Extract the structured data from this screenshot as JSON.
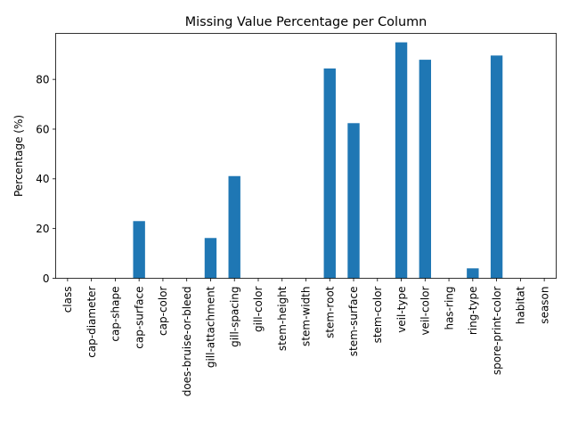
{
  "chart_data": {
    "type": "bar",
    "title": "Missing Value Percentage per Column",
    "xlabel": "",
    "ylabel": "Percentage (%)",
    "ylim": [
      0,
      98.5
    ],
    "yticks": [
      0,
      20,
      40,
      60,
      80
    ],
    "grid": false,
    "legend": "none",
    "bar_color": "#1f77b4",
    "categories": [
      "class",
      "cap-diameter",
      "cap-shape",
      "cap-surface",
      "cap-color",
      "does-bruise-or-bleed",
      "gill-attachment",
      "gill-spacing",
      "gill-color",
      "stem-height",
      "stem-width",
      "stem-root",
      "stem-surface",
      "stem-color",
      "veil-type",
      "veil-color",
      "has-ring",
      "ring-type",
      "spore-print-color",
      "habitat",
      "season"
    ],
    "values": [
      0,
      0,
      0,
      23.0,
      0,
      0,
      16.2,
      41.1,
      0,
      0,
      0,
      84.4,
      62.4,
      0,
      94.9,
      87.9,
      0,
      4.0,
      89.6,
      0,
      0
    ]
  }
}
